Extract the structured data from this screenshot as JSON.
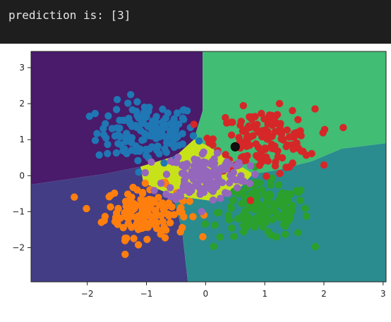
{
  "output": {
    "text": "prediction is: [3]"
  },
  "colors": {
    "page_bg": "#1e1e1e",
    "region_tl": "#4a1a6b",
    "region_tr": "#41bd74",
    "region_bl": "#433d85",
    "region_br": "#2a8c8e",
    "region_center": "#c8e21a",
    "class_blue": "#1f77b4",
    "class_orange": "#ff7f0e",
    "class_green": "#2ca02c",
    "class_red": "#d62728",
    "class_purple": "#9467bd",
    "query_point": "#111111"
  },
  "chart_data": {
    "type": "scatter",
    "title": "",
    "xlabel": "",
    "ylabel": "",
    "xlim": [
      -2.95,
      3.05
    ],
    "ylim": [
      -2.95,
      3.45
    ],
    "xticks": [
      "−2",
      "−1",
      "0",
      "1",
      "2",
      "3"
    ],
    "yticks": [
      "3",
      "2",
      "1",
      "0",
      "−1",
      "−2"
    ],
    "xtick_values": [
      -2,
      -1,
      0,
      1,
      2,
      3
    ],
    "ytick_values": [
      3,
      2,
      1,
      0,
      -1,
      -2
    ],
    "grid": false,
    "background": "decision-regions",
    "regions": [
      {
        "label": 0,
        "color_key": "region_tl",
        "polygon": [
          [
            -2.95,
            3.45
          ],
          [
            -0.05,
            3.45
          ],
          [
            -0.05,
            1.8
          ],
          [
            -0.2,
            1.0
          ],
          [
            -0.5,
            0.55
          ],
          [
            -1.1,
            0.25
          ],
          [
            -1.7,
            0.05
          ],
          [
            -2.95,
            -0.25
          ]
        ]
      },
      {
        "label": 3,
        "color_key": "region_tr",
        "polygon": [
          [
            -0.05,
            3.45
          ],
          [
            3.05,
            3.45
          ],
          [
            3.05,
            0.9
          ],
          [
            2.3,
            0.75
          ],
          [
            1.8,
            0.4
          ],
          [
            1.2,
            0.15
          ],
          [
            0.8,
            0.05
          ],
          [
            0.4,
            0.45
          ],
          [
            0.0,
            0.85
          ],
          [
            -0.2,
            1.0
          ],
          [
            -0.05,
            1.8
          ]
        ]
      },
      {
        "label": 1,
        "color_key": "region_bl",
        "polygon": [
          [
            -2.95,
            -0.25
          ],
          [
            -1.7,
            0.05
          ],
          [
            -1.1,
            0.25
          ],
          [
            -1.05,
            -0.2
          ],
          [
            -0.55,
            -0.55
          ],
          [
            -0.4,
            -1.5
          ],
          [
            -0.3,
            -2.95
          ],
          [
            -2.95,
            -2.95
          ]
        ]
      },
      {
        "label": 2,
        "color_key": "region_br",
        "polygon": [
          [
            -0.3,
            -2.95
          ],
          [
            -0.4,
            -1.5
          ],
          [
            -0.55,
            -0.55
          ],
          [
            0.1,
            -0.7
          ],
          [
            0.6,
            -0.3
          ],
          [
            0.8,
            0.05
          ],
          [
            1.2,
            0.15
          ],
          [
            1.8,
            0.4
          ],
          [
            2.3,
            0.75
          ],
          [
            3.05,
            0.9
          ],
          [
            3.05,
            -2.95
          ]
        ]
      },
      {
        "label": 4,
        "color_key": "region_center",
        "polygon": [
          [
            -1.1,
            0.25
          ],
          [
            -0.5,
            0.55
          ],
          [
            -0.2,
            1.0
          ],
          [
            0.0,
            0.85
          ],
          [
            0.4,
            0.45
          ],
          [
            0.8,
            0.05
          ],
          [
            0.6,
            -0.3
          ],
          [
            0.1,
            -0.7
          ],
          [
            -0.55,
            -0.55
          ],
          [
            -1.05,
            -0.2
          ]
        ]
      }
    ],
    "series": [
      {
        "color_key": "class_blue",
        "cx": -1.0,
        "cy": 1.2,
        "n": 150,
        "spread": 0.42
      },
      {
        "color_key": "class_orange",
        "cx": -1.0,
        "cy": -1.0,
        "n": 150,
        "spread": 0.35
      },
      {
        "color_key": "class_green",
        "cx": 1.0,
        "cy": -1.0,
        "n": 150,
        "spread": 0.38
      },
      {
        "color_key": "class_red",
        "cx": 1.0,
        "cy": 1.0,
        "n": 150,
        "spread": 0.42
      },
      {
        "color_key": "class_purple",
        "cx": 0.0,
        "cy": 0.0,
        "n": 150,
        "spread": 0.35
      }
    ],
    "query_point": {
      "x": 0.5,
      "y": 0.8
    }
  }
}
